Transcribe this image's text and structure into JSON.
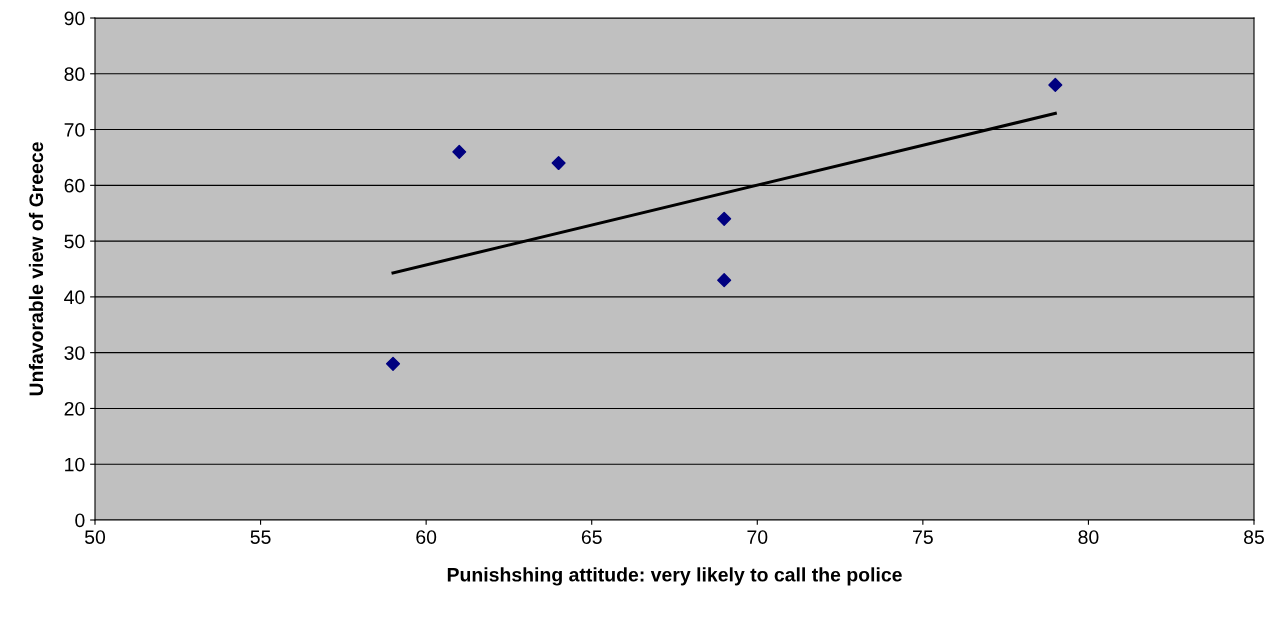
{
  "chart_data": {
    "type": "scatter",
    "xlabel": "Punishshing attitude: very likely to call the police",
    "ylabel": "Unfavorable view of Greece",
    "series": [
      {
        "color": "#000080",
        "marker": "diamond",
        "x": [
          59,
          61,
          64,
          69,
          69,
          79
        ],
        "values": [
          28,
          66,
          64,
          54,
          43,
          78
        ]
      },
      {
        "type": "line",
        "color": "#000000",
        "marker": "none",
        "line_style": "solid",
        "x": [
          59,
          79
        ],
        "values": [
          44.3,
          72.9
        ]
      }
    ],
    "xlim": [
      50,
      85
    ],
    "xticks": [
      50,
      55,
      60,
      65,
      70,
      75,
      80,
      85
    ],
    "ylim": [
      0,
      90
    ],
    "yticks": [
      0,
      10,
      20,
      30,
      40,
      50,
      60,
      70,
      80,
      90
    ],
    "grid": "y",
    "legend": false
  }
}
